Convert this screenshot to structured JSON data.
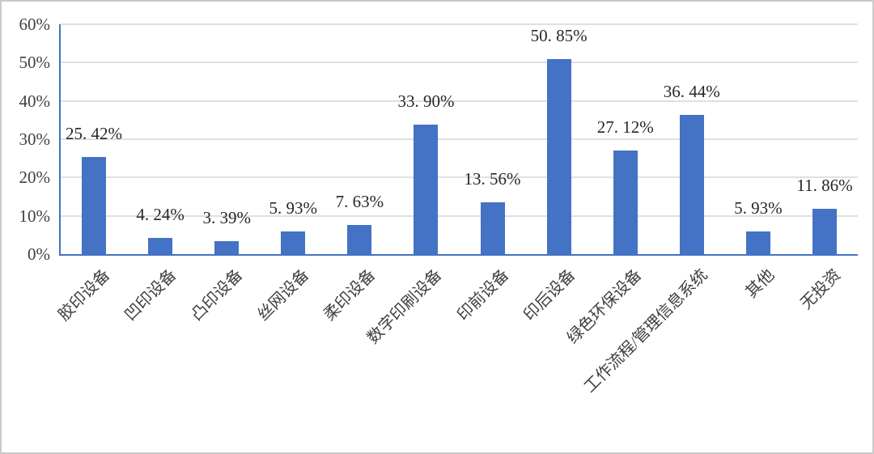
{
  "chart_data": {
    "type": "bar",
    "title": "",
    "xlabel": "",
    "ylabel": "",
    "categories": [
      "胶印设备",
      "凹印设备",
      "凸印设备",
      "丝网设备",
      "柔印设备",
      "数字印刷设备",
      "印前设备",
      "印后设备",
      "绿色环保设备",
      "工作流程/管理信息系统",
      "其他",
      "无投资"
    ],
    "values": [
      25.42,
      4.24,
      3.39,
      5.93,
      7.63,
      33.9,
      13.56,
      50.85,
      27.12,
      36.44,
      5.93,
      11.86
    ],
    "data_labels": [
      "25. 42%",
      "4. 24%",
      "3. 39%",
      "5. 93%",
      "7. 63%",
      "33. 90%",
      "13. 56%",
      "50. 85%",
      "27. 12%",
      "36. 44%",
      "5. 93%",
      "11. 86%"
    ],
    "ylim": [
      0,
      60
    ],
    "ytick_step": 10,
    "ytick_labels": [
      "0%",
      "10%",
      "20%",
      "30%",
      "40%",
      "50%",
      "60%"
    ],
    "grid": "horizontal",
    "legend": "none",
    "colors": {
      "bar": "#4472c4",
      "axis_line": "#4472c4",
      "gridline": "#e0e0e0",
      "value_label_text": "#262626",
      "tick_label_text": "#404040",
      "frame_border": "#c9c9c9",
      "background": "#ffffff"
    }
  }
}
